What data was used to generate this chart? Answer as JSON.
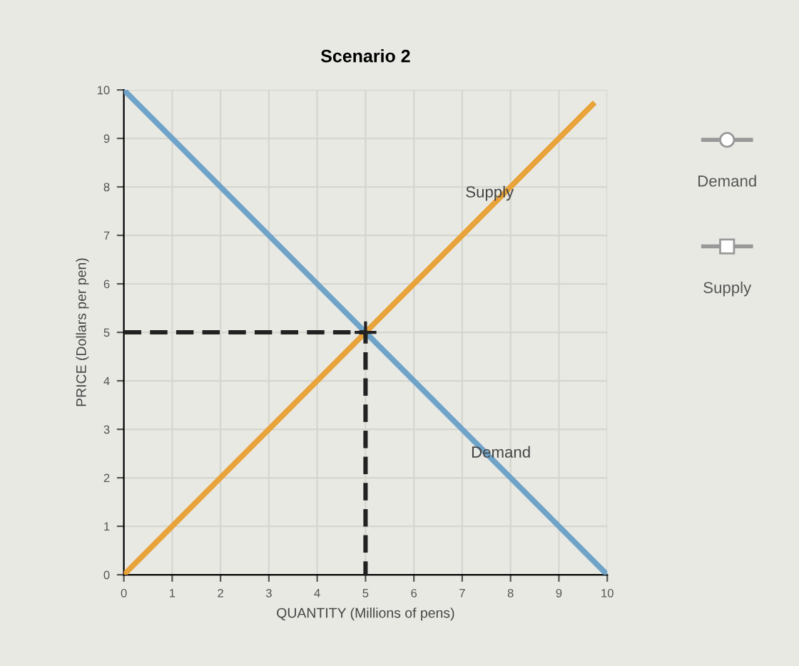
{
  "chart_data": {
    "type": "line",
    "title": "Scenario 2",
    "xlabel": "QUANTITY (Millions of pens)",
    "ylabel": "PRICE (Dollars per pen)",
    "xlim": [
      0,
      10
    ],
    "ylim": [
      0,
      10
    ],
    "xticks": [
      0,
      1,
      2,
      3,
      4,
      5,
      6,
      7,
      8,
      9,
      10
    ],
    "yticks": [
      0,
      1,
      2,
      3,
      4,
      5,
      6,
      7,
      8,
      9,
      10
    ],
    "grid": true,
    "legend": false,
    "marker": "none",
    "series": [
      {
        "name": "Demand",
        "color": "#6fa3c8",
        "x": [
          0,
          10
        ],
        "values": [
          10,
          0
        ]
      },
      {
        "name": "Supply",
        "color": "#e8a33a",
        "x": [
          0,
          9.7
        ],
        "values": [
          0,
          9.7
        ]
      },
      {
        "color": "#222222",
        "x": [
          0,
          5,
          5
        ],
        "values": [
          5,
          5,
          0
        ],
        "line_style": "dashed"
      },
      {
        "type": "scatter",
        "color": "#222222",
        "x": [
          5
        ],
        "values": [
          5
        ],
        "marker": "cross"
      }
    ],
    "annotations": [
      "Demand",
      "Supply"
    ]
  }
}
